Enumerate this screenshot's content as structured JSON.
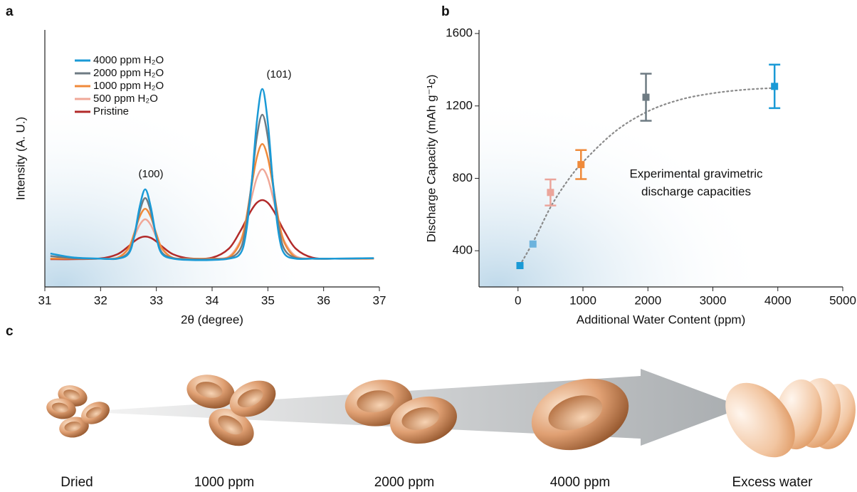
{
  "chart_data": [
    {
      "type": "line",
      "panel_label": "a",
      "xlabel": "2θ (degree)",
      "ylabel": "Intensity (A. U.)",
      "xlim": [
        31,
        37
      ],
      "xticks": [
        31,
        32,
        33,
        34,
        35,
        36,
        37
      ],
      "ylim": [
        0,
        100
      ],
      "annotations": [
        "(100)",
        "(101)"
      ],
      "x": [
        31.1,
        31.5,
        32.0,
        32.3,
        32.5,
        32.6,
        32.7,
        32.8,
        32.9,
        33.0,
        33.1,
        33.3,
        33.6,
        34.0,
        34.3,
        34.5,
        34.6,
        34.7,
        34.8,
        34.9,
        35.0,
        35.1,
        35.2,
        35.3,
        35.5,
        35.8,
        36.2,
        36.9
      ],
      "series": [
        {
          "name": "4000 ppm H₂O",
          "color": "#1a9ad6",
          "values": [
            13,
            11.5,
            11,
            11,
            12.9,
            19.3,
            31.1,
            38,
            31.1,
            19.3,
            12.9,
            11,
            10.5,
            10.5,
            11,
            12.8,
            19.9,
            38.1,
            63.8,
            77,
            63.8,
            38.1,
            19.9,
            12.8,
            11,
            11,
            11,
            11.2
          ]
        },
        {
          "name": "2000 ppm H₂O",
          "color": "#6e7b83",
          "values": [
            12,
            11.2,
            11,
            11,
            13.4,
            19.5,
            29.3,
            34.6,
            29.3,
            19.5,
            13.4,
            11.2,
            10.8,
            10.8,
            11.2,
            14.5,
            22.8,
            39,
            58,
            67,
            58,
            39,
            22.8,
            14.5,
            11.3,
            11,
            11,
            11.2
          ]
        },
        {
          "name": "1000 ppm H₂O",
          "color": "#f08a3a",
          "values": [
            11,
            11,
            11,
            11.3,
            15.1,
            20.7,
            27.3,
            30.4,
            27.3,
            20.7,
            15.1,
            11.3,
            11,
            11,
            11.5,
            17,
            25.3,
            38.2,
            50.2,
            55.6,
            50.2,
            38.2,
            25.3,
            17,
            11.5,
            11,
            11,
            11
          ]
        },
        {
          "name": "500 ppm H₂O",
          "color": "#f0a898",
          "values": [
            11,
            11,
            11,
            11.3,
            14.8,
            19.3,
            24.1,
            26.3,
            24.1,
            19.3,
            14.8,
            11.3,
            11,
            11,
            11.8,
            17.6,
            24.6,
            34,
            42.3,
            45.8,
            42.3,
            34,
            24.6,
            17.6,
            12,
            11,
            11,
            11
          ]
        },
        {
          "name": "Pristine",
          "color": "#b22a2a",
          "values": [
            10.8,
            10.8,
            11.1,
            12.7,
            15.8,
            17.7,
            19.1,
            19.6,
            19.1,
            17.7,
            15.8,
            12.7,
            11.1,
            11.4,
            14.9,
            21.5,
            25.6,
            29.7,
            32.7,
            33.8,
            32.7,
            29.7,
            25.6,
            21.5,
            14.9,
            11.4,
            11,
            11
          ]
        }
      ]
    },
    {
      "type": "scatter",
      "panel_label": "b",
      "xlabel": "Additional Water Content (ppm)",
      "ylabel": "Discharge Capacity (mAh g⁻¹c)",
      "xlim": [
        -600,
        5000
      ],
      "xticks": [
        0,
        1000,
        2000,
        3000,
        4000,
        5000
      ],
      "ylim": [
        200,
        1620
      ],
      "yticks": [
        400,
        800,
        1200,
        1600
      ],
      "annotation": [
        "Experimental gravimetric",
        "discharge capacities"
      ],
      "x": [
        30,
        230,
        500,
        970,
        1970,
        3950
      ],
      "values": [
        318,
        437,
        722,
        876,
        1248,
        1308
      ],
      "errors": [
        null,
        null,
        72,
        80,
        130,
        120
      ],
      "colors": [
        "#1a9ad6",
        "#6cb3dd",
        "#eba59b",
        "#ef8a3a",
        "#6e7b83",
        "#1a9ad6"
      ],
      "fit": {
        "color": "#8a8a8a",
        "x": [
          30,
          250,
          500,
          750,
          1000,
          1500,
          2000,
          2500,
          3000,
          3500,
          4000
        ],
        "values": [
          320,
          460,
          640,
          780,
          890,
          1060,
          1170,
          1235,
          1270,
          1290,
          1300
        ]
      }
    }
  ],
  "illustration": {
    "panel_label": "c",
    "stages": [
      "Dried",
      "1000 ppm",
      "2000 ppm",
      "4000 ppm",
      "Excess water"
    ]
  }
}
